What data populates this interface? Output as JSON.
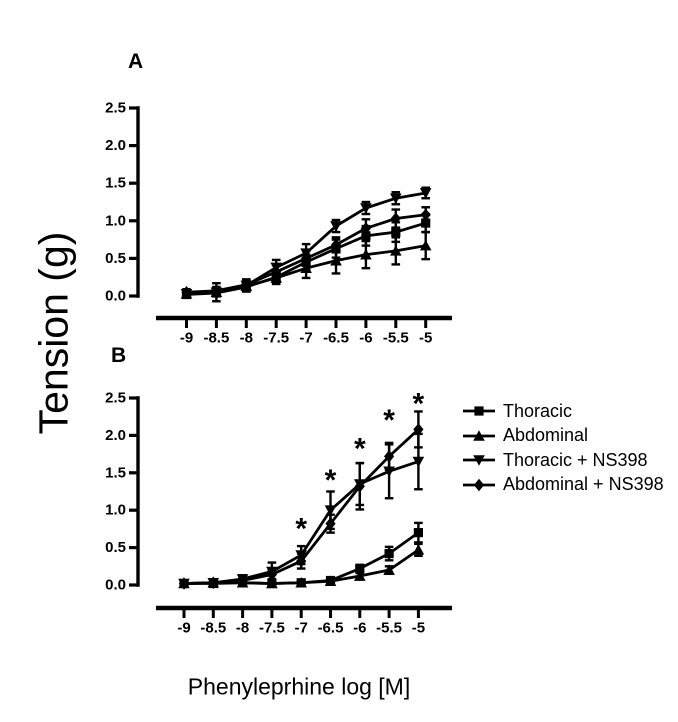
{
  "figure": {
    "y_axis_title": "Tension (g)",
    "x_axis_title": "Phenyleprhine log [M]",
    "ink_color": "#000000",
    "background_color": "#ffffff"
  },
  "legend": {
    "position": "right-of-panel-B",
    "items": [
      {
        "label": "Thoracic",
        "marker": "square"
      },
      {
        "label": "Abdominal",
        "marker": "triangle-up"
      },
      {
        "label": "Thoracic + NS398",
        "marker": "triangle-down"
      },
      {
        "label": "Abdominal + NS398",
        "marker": "diamond"
      }
    ]
  },
  "chart_data": [
    {
      "type": "line",
      "panel": "A",
      "xlabel": "Phenyleprhine log [M]",
      "ylabel": "Tension (g)",
      "ylim": [
        0,
        2.5
      ],
      "grid": false,
      "error_bars": true,
      "xticks": {
        "values": [
          -9,
          -8.5,
          -8,
          -7.5,
          -7,
          -6.5,
          -6,
          -5.5,
          -5
        ],
        "labels": [
          "-9",
          "-8.5",
          "-8",
          "-7.5",
          "-7",
          "-6.5",
          "-6",
          "-5.5",
          "-5"
        ]
      },
      "yticks": {
        "values": [
          0,
          0.5,
          1,
          1.5,
          2,
          2.5
        ],
        "labels": [
          "0.0",
          "0.5",
          "1.0",
          "1.5",
          "2.0",
          "2.5"
        ]
      },
      "series": [
        {
          "name": "Thoracic",
          "marker": "square",
          "values": [
            0.02,
            0.04,
            0.12,
            0.25,
            0.45,
            0.63,
            0.8,
            0.85,
            0.97
          ],
          "errors": [
            0.03,
            0.04,
            0.06,
            0.08,
            0.1,
            0.12,
            0.13,
            0.13,
            0.12
          ]
        },
        {
          "name": "Abdominal",
          "marker": "triangle-up",
          "values": [
            0.03,
            0.05,
            0.13,
            0.24,
            0.37,
            0.47,
            0.55,
            0.6,
            0.67
          ],
          "errors": [
            0.04,
            0.05,
            0.06,
            0.08,
            0.13,
            0.17,
            0.18,
            0.18,
            0.18
          ]
        },
        {
          "name": "Thoracic + NS398",
          "marker": "triangle-down",
          "values": [
            0.03,
            0.05,
            0.14,
            0.38,
            0.57,
            0.93,
            1.17,
            1.3,
            1.37
          ],
          "errors": [
            0.04,
            0.12,
            0.08,
            0.1,
            0.12,
            0.08,
            0.08,
            0.08,
            0.07
          ]
        },
        {
          "name": "Abdominal + NS398",
          "marker": "diamond",
          "values": [
            0.05,
            0.07,
            0.15,
            0.32,
            0.5,
            0.68,
            0.9,
            1.03,
            1.08
          ],
          "errors": [
            0.04,
            0.05,
            0.07,
            0.09,
            0.1,
            0.1,
            0.12,
            0.12,
            0.1
          ]
        }
      ],
      "annotations": []
    },
    {
      "type": "line",
      "panel": "B",
      "xlabel": "Phenyleprhine log [M]",
      "ylabel": "Tension (g)",
      "ylim": [
        0,
        2.5
      ],
      "grid": false,
      "error_bars": true,
      "legend_position": "right",
      "xticks": {
        "values": [
          -9,
          -8.5,
          -8,
          -7.5,
          -7,
          -6.5,
          -6,
          -5.5,
          -5
        ],
        "labels": [
          "-9",
          "-8.5",
          "-8",
          "-7.5",
          "-7",
          "-6.5",
          "-6",
          "-5.5",
          "-5"
        ]
      },
      "yticks": {
        "values": [
          0,
          0.5,
          1,
          1.5,
          2,
          2.5
        ],
        "labels": [
          "0.0",
          "0.5",
          "1.0",
          "1.5",
          "2.0",
          "2.5"
        ]
      },
      "series": [
        {
          "name": "Thoracic",
          "marker": "square",
          "values": [
            0.02,
            0.02,
            0.03,
            0.02,
            0.03,
            0.06,
            0.22,
            0.42,
            0.7
          ],
          "errors": [
            0.02,
            0.02,
            0.03,
            0.02,
            0.02,
            0.04,
            0.05,
            0.09,
            0.13
          ]
        },
        {
          "name": "Abdominal",
          "marker": "triangle-up",
          "values": [
            0.02,
            0.03,
            0.03,
            0.02,
            0.03,
            0.05,
            0.12,
            0.2,
            0.47
          ],
          "errors": [
            0.02,
            0.02,
            0.02,
            0.02,
            0.02,
            0.03,
            0.04,
            0.05,
            0.08
          ]
        },
        {
          "name": "Thoracic + NS398",
          "marker": "triangle-down",
          "values": [
            0.02,
            0.03,
            0.08,
            0.18,
            0.4,
            1.0,
            1.35,
            1.52,
            1.65
          ],
          "errors": [
            0.02,
            0.03,
            0.05,
            0.12,
            0.12,
            0.25,
            0.28,
            0.36,
            0.37
          ]
        },
        {
          "name": "Abdominal + NS398",
          "marker": "diamond",
          "values": [
            0.02,
            0.03,
            0.06,
            0.14,
            0.32,
            0.82,
            1.32,
            1.72,
            2.08
          ],
          "errors": [
            0.02,
            0.03,
            0.04,
            0.06,
            0.1,
            0.12,
            0.31,
            0.18,
            0.24
          ]
        }
      ],
      "annotations": [
        {
          "text": "*",
          "x": -7,
          "y": 0.85
        },
        {
          "text": "*",
          "x": -6.5,
          "y": 1.5
        },
        {
          "text": "*",
          "x": -6,
          "y": 1.92
        },
        {
          "text": "*",
          "x": -5.5,
          "y": 2.3
        },
        {
          "text": "*",
          "x": -5,
          "y": 2.52
        }
      ]
    }
  ]
}
